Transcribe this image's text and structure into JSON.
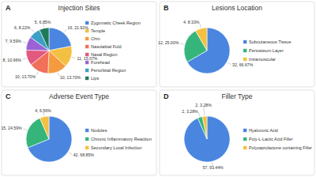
{
  "chart_data": [
    {
      "type": "pie",
      "panel_label": "A",
      "title": "Injection Sites",
      "categories": [
        "Zygomatic Cheek Region",
        "Temple",
        "Chin",
        "Nasolabial Fold",
        "Nasal Region",
        "Forehead",
        "Periorbital Region",
        "Lips"
      ],
      "values": [
        16,
        11,
        10,
        10,
        8,
        7,
        6,
        5
      ],
      "value_labels": [
        "16, 21.92%",
        "11, 15.07%",
        "10, 13.70%",
        "10, 13.70%",
        "8, 10.96%",
        "7, 9.59%",
        "6, 8.22%",
        "5, 6.85%"
      ],
      "colors": [
        "#4a86e0",
        "#f4c042",
        "#f59a3e",
        "#f0705a",
        "#e2587e",
        "#9a62d4",
        "#3b9fc6",
        "#1f7a5a"
      ],
      "data_labels": true,
      "legend": "right"
    },
    {
      "type": "pie",
      "panel_label": "B",
      "title": "Lesions Location",
      "categories": [
        "Subcutaneous Tissue",
        "Periosteum Layer",
        "Intramuscular"
      ],
      "values": [
        32,
        12,
        4
      ],
      "value_labels": [
        "32, 66.67%",
        "12, 25.00%",
        "4, 8.33%"
      ],
      "colors": [
        "#4a86e0",
        "#35b57a",
        "#f4c042"
      ],
      "data_labels": true,
      "legend": "right"
    },
    {
      "type": "pie",
      "panel_label": "C",
      "title": "Adverse Event Type",
      "categories": [
        "Nodules",
        "Chronic Inflammatory Reaction",
        "Secondary Local Infection"
      ],
      "values": [
        42,
        15,
        4
      ],
      "value_labels": [
        "42, 68.85%",
        "15, 24.59%",
        "4, 6.56%"
      ],
      "colors": [
        "#4a86e0",
        "#35b57a",
        "#f4c042"
      ],
      "data_labels": true,
      "legend": "right"
    },
    {
      "type": "pie",
      "panel_label": "D",
      "title": "Filler Type",
      "categories": [
        "Hyaluronic Acid",
        "Poly-L-Lactic Acid Filler",
        "Polycaprolactone containing Filler"
      ],
      "values": [
        57,
        2,
        2
      ],
      "value_labels": [
        "57, 93.44%",
        "2, 3.28%",
        "2, 3.28%"
      ],
      "colors": [
        "#4a86e0",
        "#35b57a",
        "#f4c042"
      ],
      "data_labels": true,
      "legend": "right"
    }
  ]
}
